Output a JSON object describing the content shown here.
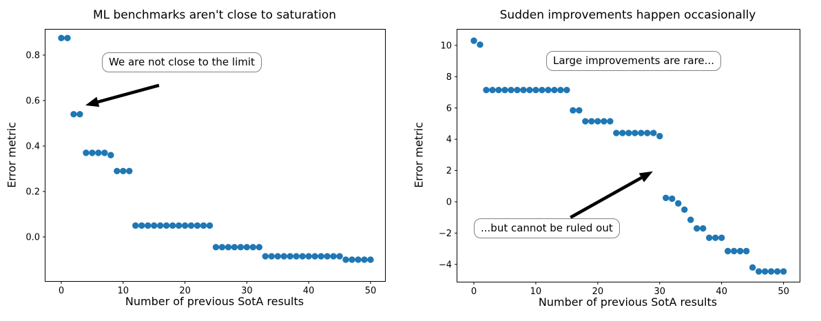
{
  "chart_data": [
    {
      "type": "scatter",
      "title": "ML benchmarks aren't close to saturation",
      "xlabel": "Number of previous SotA results",
      "ylabel": "Error metric",
      "xlim": [
        -2.56,
        52.34
      ],
      "ylim": [
        -0.194,
        0.912
      ],
      "grid": false,
      "legend": "none",
      "marker_color": "#1f77b4",
      "xticks": {
        "values": [
          0,
          10,
          20,
          30,
          40,
          50
        ],
        "labels": [
          "0",
          "10",
          "20",
          "30",
          "40",
          "50"
        ]
      },
      "yticks": {
        "values": [
          0.0,
          0.2,
          0.4,
          0.6,
          0.8
        ],
        "labels": [
          "0.0",
          "0.2",
          "0.4",
          "0.6",
          "0.8"
        ]
      },
      "x": [
        0,
        1,
        2,
        3,
        4,
        5,
        6,
        7,
        8,
        9,
        10,
        11,
        12,
        13,
        14,
        15,
        16,
        17,
        18,
        19,
        20,
        21,
        22,
        23,
        24,
        25,
        26,
        27,
        28,
        29,
        30,
        31,
        32,
        33,
        34,
        35,
        36,
        37,
        38,
        39,
        40,
        41,
        42,
        43,
        44,
        45,
        46,
        47,
        48,
        49,
        50
      ],
      "y": [
        0.875,
        0.875,
        0.54,
        0.54,
        0.37,
        0.37,
        0.37,
        0.37,
        0.36,
        0.29,
        0.29,
        0.29,
        0.05,
        0.05,
        0.05,
        0.05,
        0.05,
        0.05,
        0.05,
        0.05,
        0.05,
        0.05,
        0.05,
        0.05,
        0.05,
        -0.045,
        -0.045,
        -0.045,
        -0.045,
        -0.045,
        -0.045,
        -0.045,
        -0.045,
        -0.085,
        -0.085,
        -0.085,
        -0.085,
        -0.085,
        -0.085,
        -0.085,
        -0.085,
        -0.085,
        -0.085,
        -0.085,
        -0.085,
        -0.085,
        -0.1,
        -0.1,
        -0.1,
        -0.1,
        -0.1
      ],
      "annotations": [
        {
          "text": "We are not close to the limit",
          "box_center_data": [
            25.8,
            0.77
          ]
        }
      ],
      "arrow": {
        "tail": [
          15.8,
          0.667
        ],
        "head": [
          3.9,
          0.579
        ],
        "color": "#000000"
      }
    },
    {
      "type": "scatter",
      "title": "Sudden improvements happen occasionally",
      "xlabel": "Number of previous SotA results",
      "ylabel": "Error metric",
      "xlim": [
        -2.67,
        52.6
      ],
      "ylim": [
        -5.11,
        11.01
      ],
      "grid": false,
      "legend": "none",
      "marker_color": "#1f77b4",
      "xticks": {
        "values": [
          0,
          10,
          20,
          30,
          40,
          50
        ],
        "labels": [
          "0",
          "10",
          "20",
          "30",
          "40",
          "50"
        ]
      },
      "yticks": {
        "values": [
          -4,
          -2,
          0,
          2,
          4,
          6,
          8,
          10
        ],
        "labels": [
          "−4",
          "−2",
          "0",
          "2",
          "4",
          "6",
          "8",
          "10"
        ]
      },
      "x": [
        0,
        1,
        2,
        3,
        4,
        5,
        6,
        7,
        8,
        9,
        10,
        11,
        12,
        13,
        14,
        15,
        16,
        17,
        18,
        19,
        20,
        21,
        22,
        23,
        24,
        25,
        26,
        27,
        28,
        29,
        30,
        31,
        32,
        33,
        34,
        35,
        36,
        37,
        38,
        39,
        40,
        41,
        42,
        43,
        44,
        45,
        46,
        47,
        48,
        49,
        50
      ],
      "y": [
        10.3,
        10.05,
        7.15,
        7.15,
        7.15,
        7.15,
        7.15,
        7.15,
        7.15,
        7.15,
        7.15,
        7.15,
        7.15,
        7.15,
        7.15,
        7.15,
        5.85,
        5.85,
        5.15,
        5.15,
        5.15,
        5.15,
        5.15,
        4.4,
        4.4,
        4.4,
        4.4,
        4.4,
        4.4,
        4.4,
        4.2,
        0.25,
        0.2,
        -0.1,
        -0.5,
        -1.15,
        -1.7,
        -1.7,
        -2.3,
        -2.3,
        -2.3,
        -3.15,
        -3.15,
        -3.15,
        -3.15,
        -4.2,
        -4.45,
        -4.45,
        -4.45,
        -4.45,
        -4.45
      ],
      "annotations": [
        {
          "text": "Large improvements are rare...",
          "box_center_data": [
            32.6,
            8.9
          ]
        },
        {
          "text": "...but cannot be ruled out",
          "box_center_data": [
            14.7,
            -1.85
          ]
        }
      ],
      "arrow": {
        "tail": [
          15.6,
          -1.0
        ],
        "head": [
          28.9,
          1.95
        ],
        "color": "#000000"
      }
    }
  ]
}
